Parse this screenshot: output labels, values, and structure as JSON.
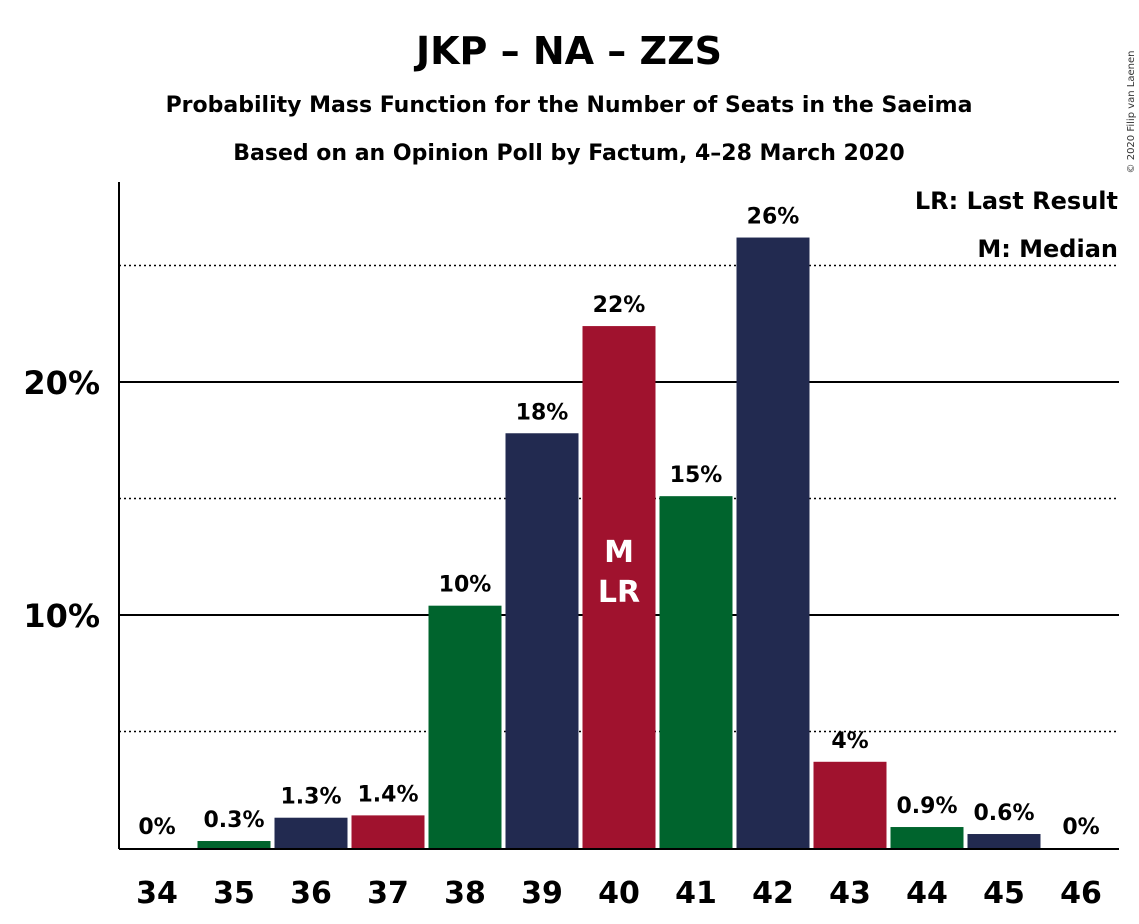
{
  "title": "JKP – NA – ZZS",
  "subtitle1": "Probability Mass Function for the Number of Seats in the Saeima",
  "subtitle2": "Based on an Opinion Poll by Factum, 4–28 March 2020",
  "copyright": "© 2020 Filip van Laenen",
  "legend": {
    "lr": "LR: Last Result",
    "m": "M: Median"
  },
  "colors": {
    "navy": "#222a50",
    "green": "#00642d",
    "red": "#a0122e"
  },
  "chart_data": {
    "type": "bar",
    "categories": [
      "34",
      "35",
      "36",
      "37",
      "38",
      "39",
      "40",
      "41",
      "42",
      "43",
      "44",
      "45",
      "46"
    ],
    "values": [
      0,
      0.3,
      1.3,
      1.4,
      10.4,
      17.8,
      22.4,
      15.1,
      26.2,
      3.7,
      0.9,
      0.6,
      0
    ],
    "data_labels": [
      "0%",
      "0.3%",
      "1.3%",
      "1.4%",
      "10%",
      "18%",
      "22%",
      "15%",
      "26%",
      "4%",
      "0.9%",
      "0.6%",
      "0%"
    ],
    "bar_colors": [
      "navy",
      "green",
      "navy",
      "red",
      "green",
      "navy",
      "red",
      "green",
      "navy",
      "red",
      "green",
      "navy",
      "red"
    ],
    "inside_labels": {
      "40": [
        "M",
        "LR"
      ]
    },
    "yticks": [
      {
        "value": 10,
        "label": "10%"
      },
      {
        "value": 20,
        "label": "20%"
      }
    ],
    "minor_gridlines": [
      5,
      15,
      25
    ],
    "ylim": [
      0,
      28.5
    ],
    "legend_position": "top-right"
  }
}
